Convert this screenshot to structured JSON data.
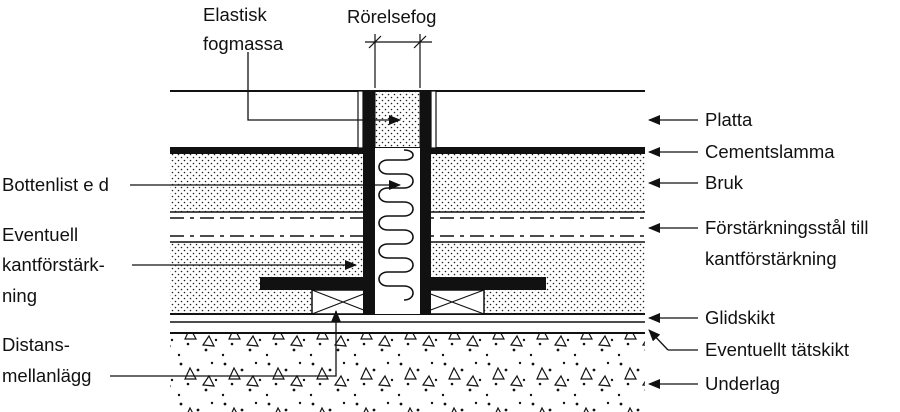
{
  "labels": {
    "elastisk_1": "Elastisk",
    "elastisk_2": "fogmassa",
    "rorelsefog": "Rörelsefog",
    "bottenlist": "Bottenlist e d",
    "eventuell_1": "Eventuell",
    "eventuell_2": "kantförstärk-",
    "eventuell_3": "ning",
    "distans_1": "Distans-",
    "distans_2": "mellanlägg",
    "platta": "Platta",
    "cementslamma": "Cementslamma",
    "bruk": "Bruk",
    "forstarkning_1": "Förstärkningsstål till",
    "forstarkning_2": "kantförstärkning",
    "glidskikt": "Glidskikt",
    "tatskikt": "Eventuellt tätskikt",
    "underlag": "Underlag"
  }
}
